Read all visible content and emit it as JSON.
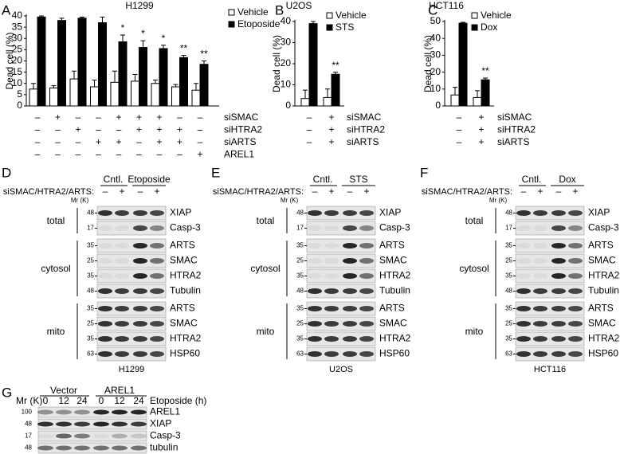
{
  "chart_data": [
    {
      "type": "bar",
      "panel": "A",
      "title": "H1299",
      "y_label": "Dead cell (%)",
      "ylim": [
        0,
        40
      ],
      "yticks": [
        0,
        5,
        10,
        15,
        20,
        25,
        30,
        35,
        40
      ],
      "series": [
        {
          "name": "Vehicle",
          "color": "#ffffff",
          "values": [
            7.5,
            8,
            12,
            8.5,
            10.5,
            11,
            10,
            8.5,
            7
          ],
          "errors": [
            2.5,
            1,
            3.5,
            3,
            5,
            3,
            1.5,
            1,
            3
          ]
        },
        {
          "name": "Etoposide",
          "color": "#000000",
          "values": [
            39.5,
            38,
            39,
            37,
            28.5,
            26,
            25.5,
            21.5,
            18.5
          ],
          "errors": [
            0.5,
            1,
            0.5,
            2.5,
            3,
            3,
            1.5,
            1,
            1.5
          ]
        }
      ],
      "significance": [
        null,
        null,
        null,
        null,
        "*",
        "*",
        "*",
        "**",
        "**"
      ],
      "conditions": [
        {
          "name": "siSMAC",
          "signs": [
            "–",
            "+",
            "–",
            "–",
            "+",
            "+",
            "+",
            "–",
            "–"
          ]
        },
        {
          "name": "siHTRA2",
          "signs": [
            "–",
            "–",
            "+",
            "–",
            "–",
            "+",
            "+",
            "+",
            "–"
          ]
        },
        {
          "name": "siARTS",
          "signs": [
            "–",
            "–",
            "–",
            "+",
            "+",
            "–",
            "+",
            "+",
            "–"
          ]
        },
        {
          "name": "AREL1",
          "signs": [
            "–",
            "–",
            "–",
            "–",
            "–",
            "–",
            "–",
            "–",
            "+"
          ]
        }
      ]
    },
    {
      "type": "bar",
      "panel": "B",
      "title": "U2OS",
      "y_label": "Dead cell (%)",
      "ylim": [
        0,
        40
      ],
      "yticks": [
        0,
        10,
        20,
        30,
        40
      ],
      "series": [
        {
          "name": "Vehicle",
          "color": "#ffffff",
          "values": [
            3.5,
            4
          ],
          "errors": [
            4,
            4
          ]
        },
        {
          "name": "STS",
          "color": "#000000",
          "values": [
            39,
            15
          ],
          "errors": [
            1,
            1
          ]
        }
      ],
      "significance": [
        null,
        "**"
      ],
      "conditions": [
        {
          "name": "siSMAC",
          "signs": [
            "–",
            "+"
          ]
        },
        {
          "name": "siHTRA2",
          "signs": [
            "–",
            "+"
          ]
        },
        {
          "name": "siARTS",
          "signs": [
            "–",
            "+"
          ]
        }
      ]
    },
    {
      "type": "bar",
      "panel": "C",
      "title": "HCT116",
      "y_label": "Dead cell (%)",
      "ylim": [
        0,
        50
      ],
      "yticks": [
        0,
        10,
        20,
        30,
        40,
        50
      ],
      "series": [
        {
          "name": "Vehicle",
          "color": "#ffffff",
          "values": [
            6.5,
            5
          ],
          "errors": [
            4.5,
            4
          ]
        },
        {
          "name": "Dox",
          "color": "#000000",
          "values": [
            49,
            15.5
          ],
          "errors": [
            0.5,
            1
          ]
        }
      ],
      "significance": [
        null,
        "**"
      ],
      "conditions": [
        {
          "name": "siSMAC",
          "signs": [
            "–",
            "+"
          ]
        },
        {
          "name": "siHTRA2",
          "signs": [
            "–",
            "+"
          ]
        },
        {
          "name": "siARTS",
          "signs": [
            "–",
            "+"
          ]
        }
      ]
    }
  ],
  "blots": [
    {
      "panel": "D",
      "control": "Cntl.",
      "treatment": "Etoposide",
      "sirna_label": "siSMAC/HTRA2/ARTS:",
      "lane_signs": [
        "–",
        "+",
        "–",
        "+"
      ],
      "mr_label": "Mr (K)",
      "caption": "H1299",
      "groups": [
        {
          "label": "total",
          "rows": [
            {
              "marker": 48,
              "label": "XIAP"
            },
            {
              "marker": 17,
              "label": "Casp-3"
            }
          ]
        },
        {
          "label": "cytosol",
          "rows": [
            {
              "marker": 35,
              "label": "ARTS"
            },
            {
              "marker": 25,
              "label": "SMAC"
            },
            {
              "marker": 35,
              "label": "HTRA2"
            },
            {
              "marker": 48,
              "label": "Tubulin"
            }
          ]
        },
        {
          "label": "mito",
          "rows": [
            {
              "marker": 35,
              "label": "ARTS"
            },
            {
              "marker": 25,
              "label": "SMAC"
            },
            {
              "marker": 35,
              "label": "HTRA2"
            },
            {
              "marker": 63,
              "label": "HSP60"
            }
          ]
        }
      ]
    },
    {
      "panel": "E",
      "control": "Cntl.",
      "treatment": "STS",
      "sirna_label": "siSMAC/HTRA2/ARTS:",
      "lane_signs": [
        "–",
        "+",
        "–",
        "+"
      ],
      "mr_label": "Mr (K)",
      "caption": "U2OS",
      "groups": [
        {
          "label": "total",
          "rows": [
            {
              "marker": 48,
              "label": "XIAP"
            },
            {
              "marker": 17,
              "label": "Casp-3"
            }
          ]
        },
        {
          "label": "cytosol",
          "rows": [
            {
              "marker": 35,
              "label": "ARTS"
            },
            {
              "marker": 25,
              "label": "SMAC"
            },
            {
              "marker": 35,
              "label": "HTRA2"
            },
            {
              "marker": 48,
              "label": "Tubulin"
            }
          ]
        },
        {
          "label": "mito",
          "rows": [
            {
              "marker": 35,
              "label": "ARTS"
            },
            {
              "marker": 25,
              "label": "SMAC"
            },
            {
              "marker": 35,
              "label": "HTRA2"
            },
            {
              "marker": 63,
              "label": "HSP60"
            }
          ]
        }
      ]
    },
    {
      "panel": "F",
      "control": "Cntl.",
      "treatment": "Dox",
      "sirna_label": "siSMAC/HTRA2/ARTS:",
      "lane_signs": [
        "–",
        "+",
        "–",
        "+"
      ],
      "mr_label": "Mr (K)",
      "caption": "HCT116",
      "groups": [
        {
          "label": "total",
          "rows": [
            {
              "marker": 48,
              "label": "XIAP"
            },
            {
              "marker": 17,
              "label": "Casp-3"
            }
          ]
        },
        {
          "label": "cytosol",
          "rows": [
            {
              "marker": 35,
              "label": "ARTS"
            },
            {
              "marker": 25,
              "label": "SMAC"
            },
            {
              "marker": 35,
              "label": "HTRA2"
            },
            {
              "marker": 48,
              "label": "Tubulin"
            }
          ]
        },
        {
          "label": "mito",
          "rows": [
            {
              "marker": 35,
              "label": "ARTS"
            },
            {
              "marker": 25,
              "label": "SMAC"
            },
            {
              "marker": 35,
              "label": "HTRA2"
            },
            {
              "marker": 63,
              "label": "HSP60"
            }
          ]
        }
      ]
    }
  ],
  "arel_blot": {
    "panel": "G",
    "lane_groups": [
      "Vector",
      "AREL1"
    ],
    "times": [
      0,
      12,
      24,
      0,
      12,
      24
    ],
    "time_label": "Etoposide (h)",
    "mr_label": "Mr (K)",
    "rows": [
      {
        "marker": 100,
        "label": "AREL1"
      },
      {
        "marker": 48,
        "label": "XIAP"
      },
      {
        "marker": 17,
        "label": "Casp-3"
      },
      {
        "marker": 48,
        "label": "tubulin"
      }
    ]
  }
}
